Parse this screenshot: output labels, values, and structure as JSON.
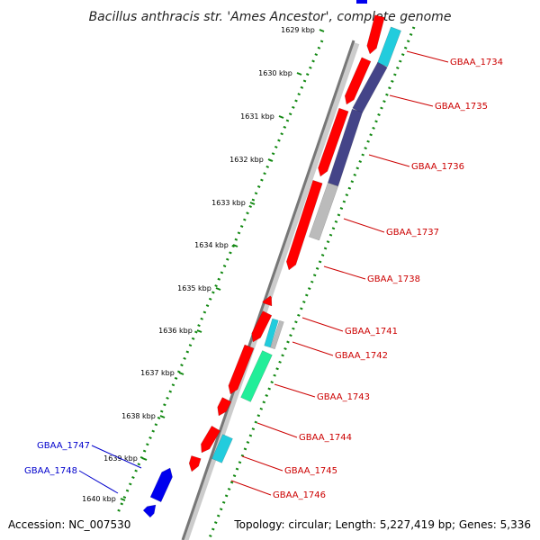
{
  "title": "Bacillus anthracis str. 'Ames Ancestor', complete genome",
  "footer": {
    "accession": "Accession: NC_007530",
    "topology": "Topology: circular; Length: 5,227,419 bp; Genes: 5,336"
  },
  "colors": {
    "forward_cds": "#ff0000",
    "reverse_cds": "#0000ee",
    "cyan": "#22ccdd",
    "navy": "#444488",
    "grey": "#bbbbbb",
    "green": "#22ee99",
    "dots": "#118811",
    "label_red": "#cc0000",
    "label_blue": "#0000cc"
  },
  "ticks": [
    "1629 kbp",
    "1630 kbp",
    "1631 kbp",
    "1632 kbp",
    "1633 kbp",
    "1634 kbp",
    "1635 kbp",
    "1636 kbp",
    "1637 kbp",
    "1638 kbp",
    "1639 kbp",
    "1640 kbp"
  ],
  "forward_labels": [
    "GBAA_1734",
    "GBAA_1735",
    "GBAA_1736",
    "GBAA_1737",
    "GBAA_1738",
    "GBAA_1741",
    "GBAA_1742",
    "GBAA_1743",
    "GBAA_1744",
    "GBAA_1745",
    "GBAA_1746"
  ],
  "reverse_labels": [
    "GBAA_1747",
    "GBAA_1748"
  ]
}
